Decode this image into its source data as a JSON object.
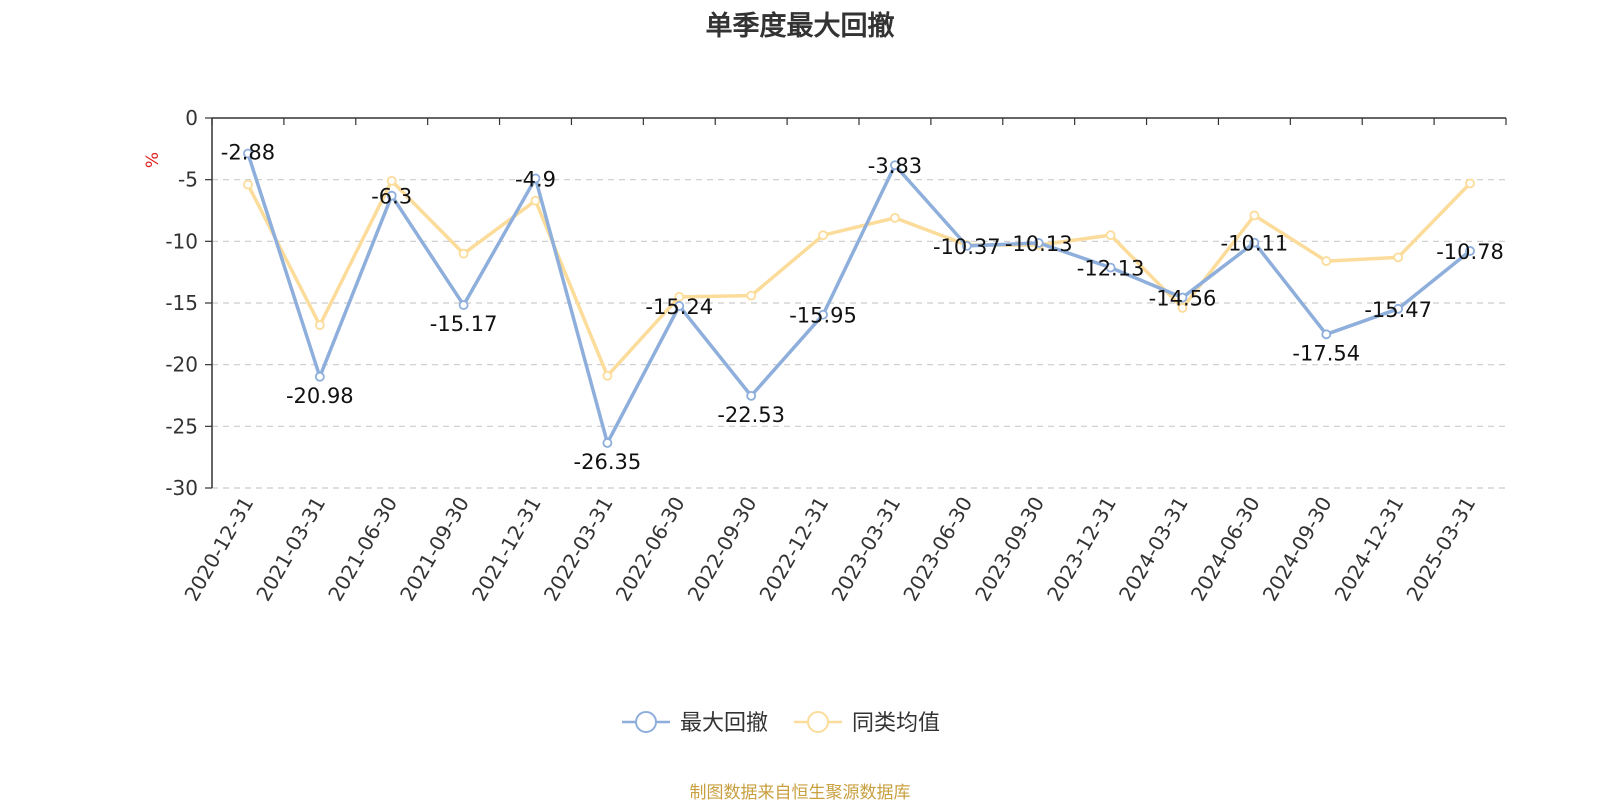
{
  "title": "单季度最大回撤",
  "source": "制图数据来自恒生聚源数据库",
  "chart_data": {
    "type": "line",
    "title": "单季度最大回撤",
    "ylabel": "%",
    "ylim": [
      -30,
      0
    ],
    "yticks": [
      0,
      -5,
      -10,
      -15,
      -20,
      -25,
      -30
    ],
    "grid": true,
    "legend_position": "bottom",
    "categories": [
      "2020-12-31",
      "2021-03-31",
      "2021-06-30",
      "2021-09-30",
      "2021-12-31",
      "2022-03-31",
      "2022-06-30",
      "2022-09-30",
      "2022-12-31",
      "2023-03-31",
      "2023-06-30",
      "2023-09-30",
      "2023-12-31",
      "2024-03-31",
      "2024-06-30",
      "2024-09-30",
      "2024-12-31",
      "2025-03-31"
    ],
    "series": [
      {
        "name": "最大回撤",
        "color": "#8eaedb",
        "values": [
          -2.88,
          -20.98,
          -6.3,
          -15.17,
          -4.9,
          -26.35,
          -15.24,
          -22.53,
          -15.95,
          -3.83,
          -10.37,
          -10.13,
          -12.13,
          -14.56,
          -10.11,
          -17.54,
          -15.47,
          -10.78
        ],
        "labels": [
          "-2.88",
          "-20.98",
          "-6.3",
          "-15.17",
          "-4.9",
          "-26.35",
          "-15.24",
          "-22.53",
          "-15.95",
          "-3.83",
          "-10.37",
          "-10.13",
          "-12.13",
          "-14.56",
          "-10.11",
          "-17.54",
          "-15.47",
          "-10.78"
        ]
      },
      {
        "name": "同类均值",
        "color": "#fcdc9a",
        "values": [
          -5.4,
          -16.8,
          -5.1,
          -11.0,
          -6.7,
          -20.9,
          -14.5,
          -14.4,
          -9.5,
          -8.1,
          -10.3,
          -10.3,
          -9.5,
          -15.4,
          -7.9,
          -11.6,
          -11.3,
          -5.3
        ]
      }
    ]
  }
}
